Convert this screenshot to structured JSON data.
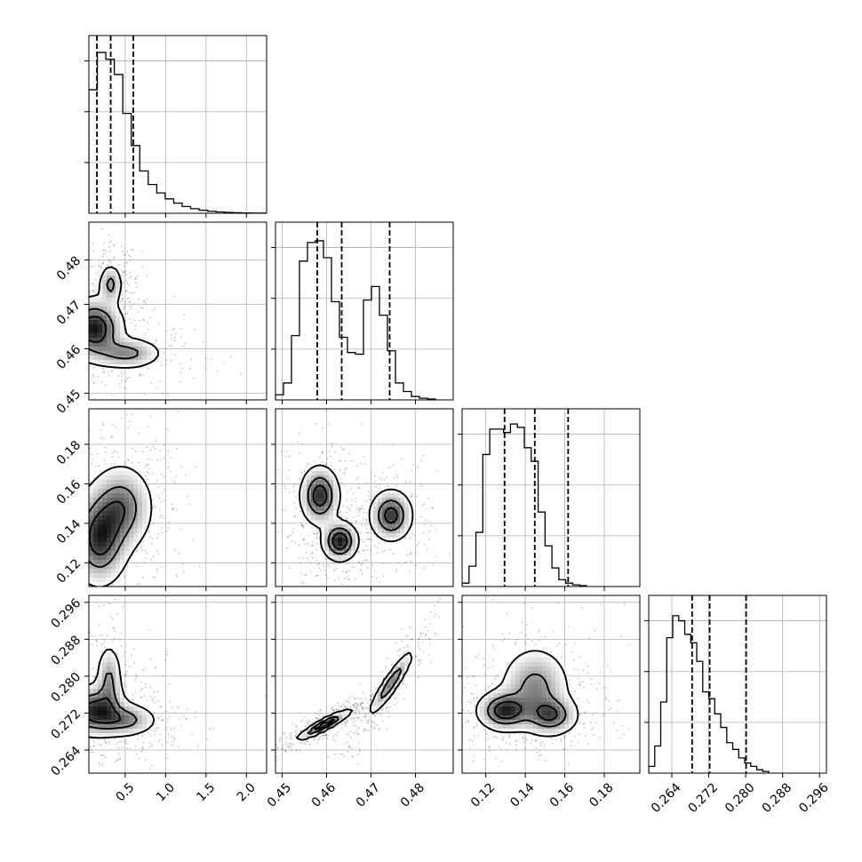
{
  "chart_data": {
    "type": "corner",
    "description_note": "",
    "params": [
      {
        "id": "p0",
        "range": [
          0.05,
          2.25
        ],
        "ticks": [
          0.5,
          1.0,
          1.5,
          2.0
        ],
        "tick_labels": [
          "0.5",
          "1.0",
          "1.5",
          "2.0"
        ],
        "quantiles": [
          0.15,
          0.32,
          0.6
        ],
        "hist_bin_width": 0.105,
        "hist": [
          0.73,
          0.95,
          0.91,
          0.82,
          0.59,
          0.4,
          0.25,
          0.17,
          0.12,
          0.085,
          0.06,
          0.04,
          0.027,
          0.018,
          0.012,
          0.008,
          0.005,
          0.003,
          0.002,
          0.001,
          0.001
        ]
      },
      {
        "id": "p1",
        "range": [
          0.4485,
          0.4885
        ],
        "ticks": [
          0.45,
          0.46,
          0.47,
          0.48
        ],
        "tick_labels": [
          "0.45",
          "0.46",
          "0.47",
          "0.48"
        ],
        "quantiles": [
          0.4579,
          0.4634,
          0.4742
        ],
        "hist_bin_width": 0.0018,
        "hist": [
          0.03,
          0.1,
          0.38,
          0.82,
          0.93,
          0.94,
          0.84,
          0.58,
          0.37,
          0.28,
          0.27,
          0.59,
          0.67,
          0.5,
          0.29,
          0.1,
          0.05,
          0.02,
          0.01,
          0.005
        ]
      },
      {
        "id": "p2",
        "range": [
          0.108,
          0.198
        ],
        "ticks": [
          0.12,
          0.14,
          0.16,
          0.18
        ],
        "tick_labels": [
          "0.12",
          "0.14",
          "0.16",
          "0.18"
        ],
        "quantiles": [
          0.1295,
          0.1448,
          0.1617
        ],
        "hist_bin_width": 0.0035,
        "hist": [
          0.02,
          0.12,
          0.32,
          0.78,
          0.93,
          0.93,
          0.91,
          0.96,
          0.94,
          0.82,
          0.74,
          0.44,
          0.24,
          0.11,
          0.04,
          0.02,
          0.01,
          0.005
        ]
      },
      {
        "id": "p3",
        "range": [
          0.259,
          0.2975
        ],
        "ticks": [
          0.264,
          0.272,
          0.28,
          0.288,
          0.296
        ],
        "tick_labels": [
          "0.264",
          "0.272",
          "0.280",
          "0.288",
          "0.296"
        ],
        "quantiles": [
          0.2684,
          0.2722,
          0.2801
        ],
        "hist_bin_width": 0.0013,
        "hist": [
          0.04,
          0.16,
          0.42,
          0.8,
          0.93,
          0.9,
          0.82,
          0.77,
          0.66,
          0.48,
          0.44,
          0.35,
          0.27,
          0.18,
          0.14,
          0.09,
          0.06,
          0.04,
          0.02,
          0.01
        ]
      }
    ],
    "pairs": [
      {
        "x": 0,
        "y": 1,
        "modes": [
          {
            "cx": 0.12,
            "cy": 0.4645,
            "sx": 0.18,
            "sy": 0.0035,
            "w": 1.0
          },
          {
            "cx": 0.52,
            "cy": 0.459,
            "sx": 0.22,
            "sy": 0.0018,
            "w": 0.55
          },
          {
            "cx": 0.32,
            "cy": 0.4745,
            "sx": 0.07,
            "sy": 0.0022,
            "w": 0.55
          }
        ],
        "contour_levels": [
          0.9,
          0.55,
          0.25
        ],
        "scatter_count": 650
      },
      {
        "x": 0,
        "y": 2,
        "modes": [
          {
            "cx": 0.18,
            "cy": 0.132,
            "sx": 0.18,
            "sy": 0.012,
            "w": 1.0
          },
          {
            "cx": 0.45,
            "cy": 0.148,
            "sx": 0.2,
            "sy": 0.011,
            "w": 0.75
          }
        ],
        "contour_levels": [
          0.9,
          0.55,
          0.25
        ],
        "scatter_count": 650
      },
      {
        "x": 1,
        "y": 2,
        "modes": [
          {
            "cx": 0.4585,
            "cy": 0.154,
            "sx": 0.0022,
            "sy": 0.0075,
            "w": 0.9
          },
          {
            "cx": 0.463,
            "cy": 0.131,
            "sx": 0.002,
            "sy": 0.005,
            "w": 1.0
          },
          {
            "cx": 0.4745,
            "cy": 0.144,
            "sx": 0.0024,
            "sy": 0.0065,
            "w": 0.85
          }
        ],
        "contour_levels": [
          0.9,
          0.55,
          0.25
        ],
        "scatter_count": 650
      },
      {
        "x": 0,
        "y": 3,
        "modes": [
          {
            "cx": 0.12,
            "cy": 0.2725,
            "sx": 0.2,
            "sy": 0.0028,
            "w": 1.0
          },
          {
            "cx": 0.5,
            "cy": 0.2705,
            "sx": 0.2,
            "sy": 0.0018,
            "w": 0.6
          },
          {
            "cx": 0.3,
            "cy": 0.279,
            "sx": 0.08,
            "sy": 0.004,
            "w": 0.55
          }
        ],
        "contour_levels": [
          0.9,
          0.55,
          0.25
        ],
        "scatter_count": 650
      },
      {
        "x": 1,
        "y": 3,
        "modes": [
          {
            "cx": 0.4595,
            "cy": 0.2695,
            "sx": 0.003,
            "sy": 0.0016,
            "w": 1.0,
            "corr": 0.92
          },
          {
            "cx": 0.4745,
            "cy": 0.2785,
            "sx": 0.0025,
            "sy": 0.0035,
            "w": 0.7,
            "corr": 0.92
          }
        ],
        "contour_levels": [
          0.9,
          0.55,
          0.25
        ],
        "scatter_count": 650
      },
      {
        "x": 2,
        "y": 3,
        "modes": [
          {
            "cx": 0.1295,
            "cy": 0.2725,
            "sx": 0.007,
            "sy": 0.0022,
            "w": 1.0
          },
          {
            "cx": 0.153,
            "cy": 0.2715,
            "sx": 0.007,
            "sy": 0.0022,
            "w": 0.75
          },
          {
            "cx": 0.145,
            "cy": 0.2775,
            "sx": 0.009,
            "sy": 0.0045,
            "w": 0.6
          }
        ],
        "contour_levels": [
          0.9,
          0.55,
          0.25
        ],
        "scatter_count": 650
      }
    ],
    "grid": true,
    "legend": "none"
  }
}
